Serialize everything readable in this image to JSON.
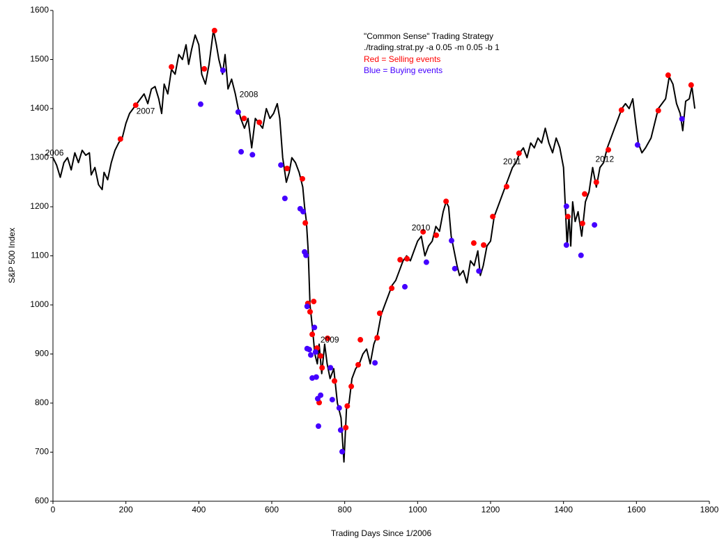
{
  "chart_data": {
    "type": "line",
    "title": "\"Common Sense\" Trading Strategy",
    "subtitle": "./trading.strat.py -a 0.05 -m 0.05 -b 1",
    "x_label": "Trading Days Since 1/2006",
    "y_label": "S&P 500 Index",
    "xlim": [
      0,
      1800
    ],
    "xticks": [
      0,
      200,
      400,
      600,
      800,
      1000,
      1200,
      1400,
      1600,
      1800
    ],
    "ylim": [
      600,
      1600
    ],
    "yticks": [
      600,
      700,
      800,
      900,
      1000,
      1100,
      1200,
      1300,
      1400,
      1500,
      1600
    ],
    "grid": false,
    "legend": "upper center",
    "annotations": [
      {
        "text": "2006",
        "x": 4,
        "y": 1309
      },
      {
        "text": "2007",
        "x": 254,
        "y": 1394
      },
      {
        "text": "2008",
        "x": 537,
        "y": 1428
      },
      {
        "text": "2009",
        "x": 759,
        "y": 928
      },
      {
        "text": "2010",
        "x": 1009,
        "y": 1156
      },
      {
        "text": "2011",
        "x": 1259,
        "y": 1291
      },
      {
        "text": "2012",
        "x": 1513,
        "y": 1296
      }
    ],
    "series": [
      {
        "type": "line",
        "color": "#000000",
        "x": [
          0,
          10,
          20,
          30,
          40,
          50,
          60,
          70,
          80,
          90,
          100,
          105,
          115,
          125,
          135,
          140,
          150,
          160,
          170,
          180,
          190,
          200,
          210,
          220,
          230,
          240,
          250,
          260,
          270,
          280,
          290,
          298,
          305,
          315,
          325,
          335,
          345,
          355,
          365,
          372,
          380,
          390,
          400,
          408,
          418,
          428,
          440,
          448,
          455,
          465,
          472,
          480,
          490,
          500,
          508,
          515,
          525,
          535,
          545,
          555,
          565,
          575,
          585,
          595,
          605,
          615,
          622,
          630,
          640,
          648,
          655,
          665,
          675,
          685,
          690,
          695,
          700,
          705,
          712,
          718,
          725,
          730,
          737,
          745,
          752,
          760,
          770,
          780,
          790,
          798,
          805,
          812,
          820,
          830,
          840,
          850,
          860,
          870,
          880,
          890,
          900,
          910,
          920,
          930,
          940,
          950,
          960,
          970,
          980,
          990,
          1000,
          1010,
          1020,
          1030,
          1040,
          1050,
          1060,
          1070,
          1078,
          1085,
          1092,
          1100,
          1108,
          1115,
          1125,
          1135,
          1145,
          1155,
          1165,
          1172,
          1180,
          1190,
          1200,
          1210,
          1220,
          1230,
          1240,
          1250,
          1260,
          1270,
          1280,
          1290,
          1300,
          1310,
          1320,
          1330,
          1340,
          1350,
          1360,
          1370,
          1380,
          1390,
          1400,
          1405,
          1410,
          1415,
          1420,
          1425,
          1432,
          1440,
          1450,
          1460,
          1470,
          1480,
          1490,
          1500,
          1510,
          1520,
          1530,
          1540,
          1550,
          1560,
          1570,
          1580,
          1590,
          1598,
          1605,
          1615,
          1625,
          1640,
          1650,
          1660,
          1670,
          1680,
          1690,
          1700,
          1710,
          1720,
          1727,
          1735,
          1745,
          1752,
          1760
        ],
        "values": [
          1300,
          1285,
          1260,
          1290,
          1300,
          1275,
          1310,
          1290,
          1315,
          1305,
          1310,
          1265,
          1280,
          1245,
          1235,
          1270,
          1255,
          1290,
          1315,
          1330,
          1340,
          1370,
          1390,
          1400,
          1410,
          1420,
          1430,
          1410,
          1440,
          1445,
          1420,
          1390,
          1450,
          1430,
          1480,
          1470,
          1510,
          1500,
          1530,
          1490,
          1520,
          1550,
          1530,
          1470,
          1450,
          1490,
          1560,
          1530,
          1500,
          1470,
          1510,
          1440,
          1460,
          1430,
          1400,
          1380,
          1360,
          1380,
          1320,
          1380,
          1370,
          1360,
          1400,
          1380,
          1390,
          1410,
          1380,
          1300,
          1250,
          1270,
          1300,
          1290,
          1270,
          1240,
          1200,
          1170,
          1110,
          1000,
          950,
          900,
          880,
          920,
          860,
          920,
          880,
          850,
          870,
          800,
          770,
          680,
          790,
          800,
          850,
          870,
          880,
          900,
          910,
          880,
          920,
          940,
          980,
          1000,
          1020,
          1040,
          1050,
          1070,
          1090,
          1100,
          1090,
          1110,
          1130,
          1140,
          1100,
          1120,
          1130,
          1160,
          1150,
          1190,
          1210,
          1200,
          1140,
          1110,
          1080,
          1060,
          1070,
          1045,
          1090,
          1080,
          1110,
          1060,
          1080,
          1120,
          1130,
          1180,
          1200,
          1220,
          1240,
          1260,
          1280,
          1290,
          1310,
          1320,
          1300,
          1330,
          1320,
          1340,
          1330,
          1360,
          1330,
          1310,
          1340,
          1320,
          1280,
          1200,
          1120,
          1180,
          1120,
          1210,
          1170,
          1190,
          1140,
          1210,
          1230,
          1280,
          1240,
          1280,
          1290,
          1320,
          1340,
          1360,
          1380,
          1400,
          1410,
          1400,
          1420,
          1370,
          1330,
          1310,
          1320,
          1340,
          1370,
          1400,
          1410,
          1420,
          1465,
          1450,
          1410,
          1390,
          1355,
          1415,
          1420,
          1445,
          1400
        ]
      },
      {
        "type": "scatter",
        "name": "Red = Selling events",
        "color": "#ff0000",
        "x": [
          185,
          227,
          325,
          415,
          443,
          524,
          566,
          642,
          684,
          692,
          699,
          705,
          711,
          715,
          724,
          730,
          734,
          738,
          753,
          772,
          803,
          807,
          818,
          837,
          843,
          889,
          896,
          929,
          952,
          971,
          1015,
          1051,
          1078,
          1154,
          1181,
          1206,
          1244,
          1278,
          1412,
          1452,
          1458,
          1490,
          1523,
          1559,
          1660,
          1687,
          1750
        ],
        "values": [
          1338,
          1407,
          1485,
          1481,
          1559,
          1380,
          1372,
          1278,
          1257,
          1167,
          1003,
          986,
          940,
          1007,
          912,
          801,
          896,
          872,
          932,
          845,
          750,
          794,
          834,
          878,
          929,
          933,
          983,
          1034,
          1092,
          1094,
          1149,
          1142,
          1211,
          1126,
          1122,
          1180,
          1241,
          1309,
          1180,
          1166,
          1226,
          1250,
          1316,
          1397,
          1396,
          1468,
          1448
        ]
      },
      {
        "type": "scatter",
        "name": "Blue = Buying events",
        "color": "#4400ff",
        "x": [
          405,
          466,
          508,
          516,
          547,
          625,
          636,
          678,
          686,
          690,
          694,
          697,
          697,
          703,
          707,
          711,
          717,
          720,
          722,
          726,
          728,
          734,
          761,
          766,
          785,
          789,
          793,
          883,
          965,
          1024,
          1093,
          1102,
          1168,
          1408,
          1408,
          1448,
          1485,
          1603,
          1725
        ],
        "values": [
          1409,
          1478,
          1393,
          1312,
          1306,
          1285,
          1217,
          1196,
          1190,
          1108,
          1101,
          997,
          911,
          909,
          898,
          851,
          954,
          904,
          853,
          809,
          753,
          816,
          872,
          807,
          790,
          745,
          701,
          882,
          1037,
          1087,
          1131,
          1074,
          1069,
          1201,
          1122,
          1101,
          1163,
          1326,
          1379
        ]
      }
    ]
  }
}
